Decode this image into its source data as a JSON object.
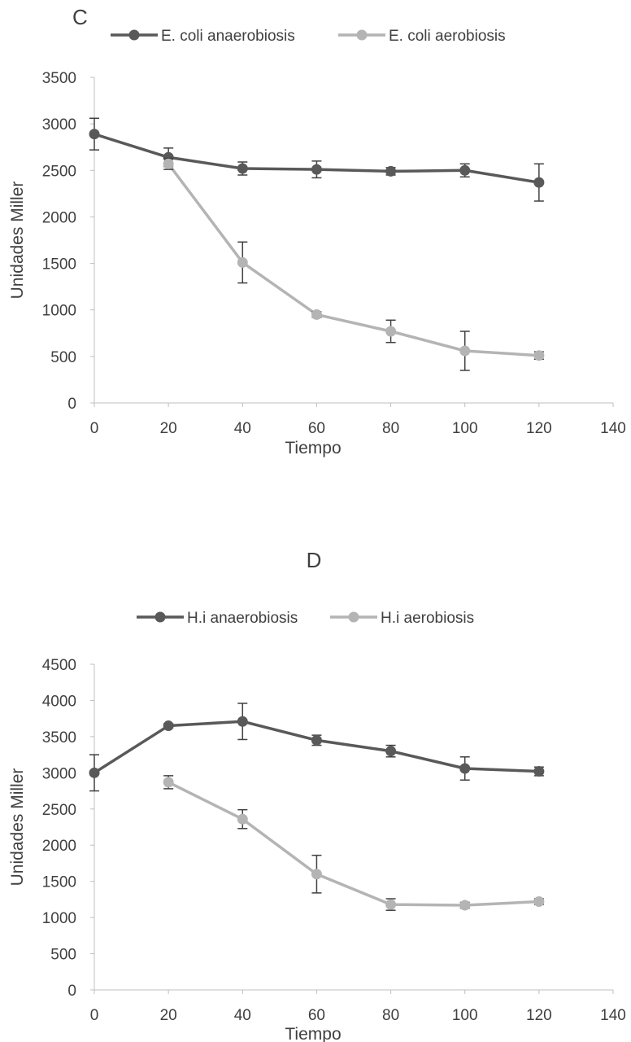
{
  "chart_data": [
    {
      "type": "line",
      "panel_label": "C",
      "title": "",
      "xlabel": "Tiempo",
      "ylabel": "Unidades Miller",
      "xlim": [
        0,
        140
      ],
      "ylim": [
        0,
        3500
      ],
      "x_ticks": [
        0,
        20,
        40,
        60,
        80,
        100,
        120,
        140
      ],
      "y_ticks": [
        0,
        500,
        1000,
        1500,
        2000,
        2500,
        3000,
        3500
      ],
      "grid": false,
      "legend": "top",
      "series": [
        {
          "name": "E. coli anaerobiosis",
          "color": "#595959",
          "x": [
            0,
            20,
            40,
            60,
            80,
            100,
            120
          ],
          "y": [
            2890,
            2640,
            2520,
            2510,
            2490,
            2500,
            2370
          ],
          "err": [
            170,
            100,
            70,
            90,
            40,
            70,
            200
          ]
        },
        {
          "name": "E. coli aerobiosis",
          "color": "#b4b4b4",
          "x": [
            20,
            40,
            60,
            80,
            100,
            120
          ],
          "y": [
            2570,
            1510,
            950,
            770,
            560,
            510
          ],
          "err": [
            60,
            220,
            30,
            120,
            210,
            40
          ]
        }
      ]
    },
    {
      "type": "line",
      "panel_label": "D",
      "title": "",
      "xlabel": "Tiempo",
      "ylabel": "Unidades Miller",
      "xlim": [
        0,
        140
      ],
      "ylim": [
        0,
        4500
      ],
      "x_ticks": [
        0,
        20,
        40,
        60,
        80,
        100,
        120,
        140
      ],
      "y_ticks": [
        0,
        500,
        1000,
        1500,
        2000,
        2500,
        3000,
        3500,
        4000,
        4500
      ],
      "grid": false,
      "legend": "top",
      "series": [
        {
          "name": "H.i anaerobiosis",
          "color": "#595959",
          "x": [
            0,
            20,
            40,
            60,
            80,
            100,
            120
          ],
          "y": [
            3000,
            3650,
            3710,
            3450,
            3300,
            3060,
            3020
          ],
          "err": [
            250,
            30,
            250,
            70,
            80,
            160,
            60
          ]
        },
        {
          "name": "H.i aerobiosis",
          "color": "#b4b4b4",
          "x": [
            20,
            40,
            60,
            80,
            100,
            120
          ],
          "y": [
            2870,
            2360,
            1600,
            1180,
            1170,
            1220
          ],
          "err": [
            90,
            130,
            260,
            80,
            40,
            40
          ]
        }
      ]
    }
  ]
}
